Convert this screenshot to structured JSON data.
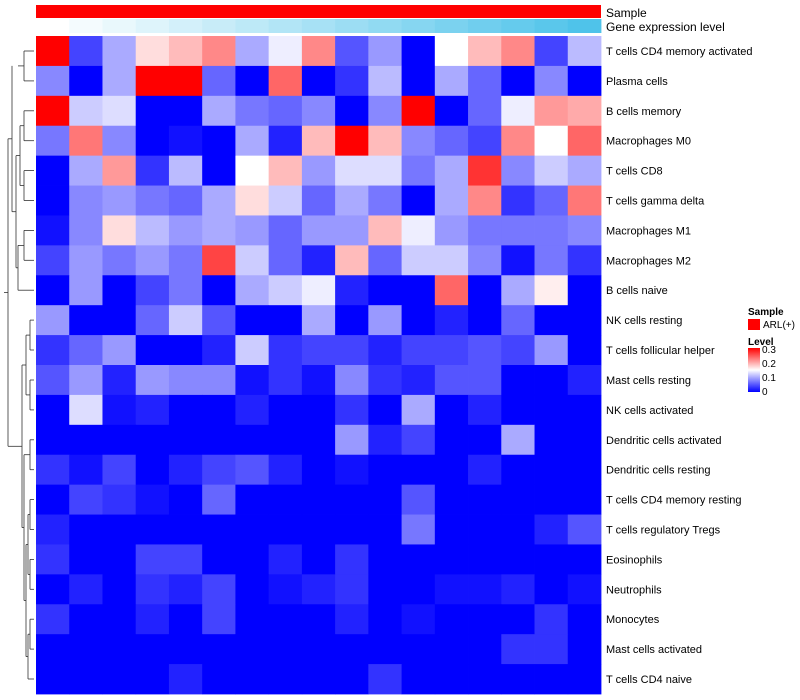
{
  "chart_data": {
    "type": "heatmap",
    "title": "",
    "top_annotations": [
      {
        "name": "Sample",
        "color": "#ff0000"
      },
      {
        "name": "Gene expression level",
        "gradient": [
          "#ffffff",
          "#4fc3ea"
        ]
      }
    ],
    "color_scale": {
      "min": 0,
      "mid": 0.15,
      "max": 0.3,
      "low_color": "#0000ff",
      "mid_color": "#ffffff",
      "high_color": "#ff0000"
    },
    "rows": [
      "T cells CD4 memory activated",
      "Plasma cells",
      "B cells memory",
      "Macrophages M0",
      "T cells CD8",
      "T cells gamma delta",
      "Macrophages M1",
      "Macrophages M2",
      "B cells naive",
      "NK cells resting",
      "T cells follicular helper",
      "Mast cells resting",
      "NK cells activated",
      "Dendritic cells activated",
      "Dendritic cells resting",
      "T cells CD4 memory resting",
      "T cells regulatory  Tregs",
      "Eosinophils",
      "Neutrophils",
      "Monocytes",
      "Mast cells activated",
      "T cells CD4 naive"
    ],
    "values": [
      [
        0.3,
        0.04,
        0.1,
        0.17,
        0.19,
        0.22,
        0.1,
        0.14,
        0.22,
        0.05,
        0.09,
        0.0,
        0.15,
        0.19,
        0.22,
        0.04,
        0.11
      ],
      [
        0.08,
        0.0,
        0.1,
        0.3,
        0.3,
        0.06,
        0.0,
        0.24,
        0.0,
        0.03,
        0.11,
        0.0,
        0.1,
        0.06,
        0.0,
        0.08,
        0.0
      ],
      [
        0.3,
        0.12,
        0.13,
        0.0,
        0.0,
        0.1,
        0.07,
        0.06,
        0.08,
        0.0,
        0.08,
        0.3,
        0.0,
        0.06,
        0.14,
        0.21,
        0.2
      ],
      [
        0.07,
        0.23,
        0.08,
        0.0,
        0.01,
        0.0,
        0.1,
        0.02,
        0.19,
        0.3,
        0.19,
        0.08,
        0.06,
        0.04,
        0.22,
        0.15,
        0.24
      ],
      [
        0.0,
        0.1,
        0.21,
        0.03,
        0.11,
        0.0,
        0.15,
        0.19,
        0.09,
        0.13,
        0.13,
        0.07,
        0.1,
        0.27,
        0.08,
        0.12,
        0.1
      ],
      [
        0.0,
        0.08,
        0.09,
        0.07,
        0.06,
        0.1,
        0.17,
        0.12,
        0.06,
        0.1,
        0.07,
        0.0,
        0.1,
        0.22,
        0.03,
        0.06,
        0.23
      ],
      [
        0.01,
        0.08,
        0.17,
        0.11,
        0.09,
        0.1,
        0.09,
        0.06,
        0.09,
        0.09,
        0.19,
        0.14,
        0.09,
        0.07,
        0.07,
        0.07,
        0.08
      ],
      [
        0.04,
        0.09,
        0.07,
        0.09,
        0.07,
        0.26,
        0.12,
        0.06,
        0.02,
        0.19,
        0.06,
        0.12,
        0.12,
        0.08,
        0.01,
        0.07,
        0.03
      ],
      [
        0.0,
        0.09,
        0.0,
        0.04,
        0.07,
        0.0,
        0.1,
        0.12,
        0.14,
        0.02,
        0.0,
        0.0,
        0.24,
        0.0,
        0.1,
        0.16,
        0.0
      ],
      [
        0.09,
        0.0,
        0.0,
        0.06,
        0.12,
        0.05,
        0.0,
        0.0,
        0.1,
        0.0,
        0.09,
        0.0,
        0.02,
        0.0,
        0.06,
        0.0,
        0.0
      ],
      [
        0.03,
        0.06,
        0.09,
        0.0,
        0.0,
        0.02,
        0.12,
        0.03,
        0.04,
        0.04,
        0.02,
        0.04,
        0.04,
        0.05,
        0.04,
        0.09,
        0.0
      ],
      [
        0.05,
        0.09,
        0.02,
        0.09,
        0.08,
        0.08,
        0.01,
        0.03,
        0.01,
        0.08,
        0.03,
        0.02,
        0.05,
        0.05,
        0.0,
        0.0,
        0.02
      ],
      [
        0.0,
        0.13,
        0.01,
        0.02,
        0.0,
        0.0,
        0.02,
        0.0,
        0.0,
        0.03,
        0.0,
        0.1,
        0.0,
        0.02,
        0.0,
        0.0,
        0.0
      ],
      [
        0.0,
        0.0,
        0.0,
        0.0,
        0.0,
        0.0,
        0.0,
        0.0,
        0.0,
        0.09,
        0.02,
        0.04,
        0.0,
        0.0,
        0.1,
        0.0,
        0.0
      ],
      [
        0.03,
        0.01,
        0.04,
        0.0,
        0.02,
        0.04,
        0.05,
        0.02,
        0.0,
        0.01,
        0.0,
        0.0,
        0.0,
        0.02,
        0.0,
        0.0,
        0.0
      ],
      [
        0.0,
        0.04,
        0.03,
        0.01,
        0.0,
        0.06,
        0.0,
        0.0,
        0.0,
        0.0,
        0.0,
        0.05,
        0.0,
        0.0,
        0.0,
        0.0,
        0.0
      ],
      [
        0.02,
        0.0,
        0.0,
        0.0,
        0.0,
        0.0,
        0.0,
        0.0,
        0.0,
        0.0,
        0.0,
        0.07,
        0.0,
        0.0,
        0.0,
        0.02,
        0.05
      ],
      [
        0.03,
        0.0,
        0.0,
        0.04,
        0.04,
        0.0,
        0.0,
        0.02,
        0.0,
        0.03,
        0.0,
        0.0,
        0.0,
        0.0,
        0.0,
        0.0,
        0.0
      ],
      [
        0.0,
        0.02,
        0.0,
        0.03,
        0.02,
        0.04,
        0.0,
        0.01,
        0.02,
        0.03,
        0.0,
        0.0,
        0.01,
        0.01,
        0.02,
        0.0,
        0.01
      ],
      [
        0.03,
        0.0,
        0.0,
        0.02,
        0.0,
        0.04,
        0.0,
        0.0,
        0.0,
        0.02,
        0.0,
        0.01,
        0.0,
        0.0,
        0.0,
        0.03,
        0.0
      ],
      [
        0.0,
        0.0,
        0.0,
        0.0,
        0.0,
        0.0,
        0.0,
        0.0,
        0.0,
        0.0,
        0.0,
        0.0,
        0.0,
        0.0,
        0.03,
        0.03,
        0.0
      ],
      [
        0.0,
        0.0,
        0.0,
        0.0,
        0.02,
        0.0,
        0.0,
        0.0,
        0.0,
        0.0,
        0.03,
        0.0,
        0.0,
        0.0,
        0.0,
        0.0,
        0.0
      ]
    ],
    "legend": {
      "sample_title": "Sample",
      "sample_item": "ARL(+)",
      "level_title": "Level",
      "level_ticks": [
        "0.3",
        "0.2",
        "0.1",
        "0"
      ],
      "position": "right"
    }
  }
}
